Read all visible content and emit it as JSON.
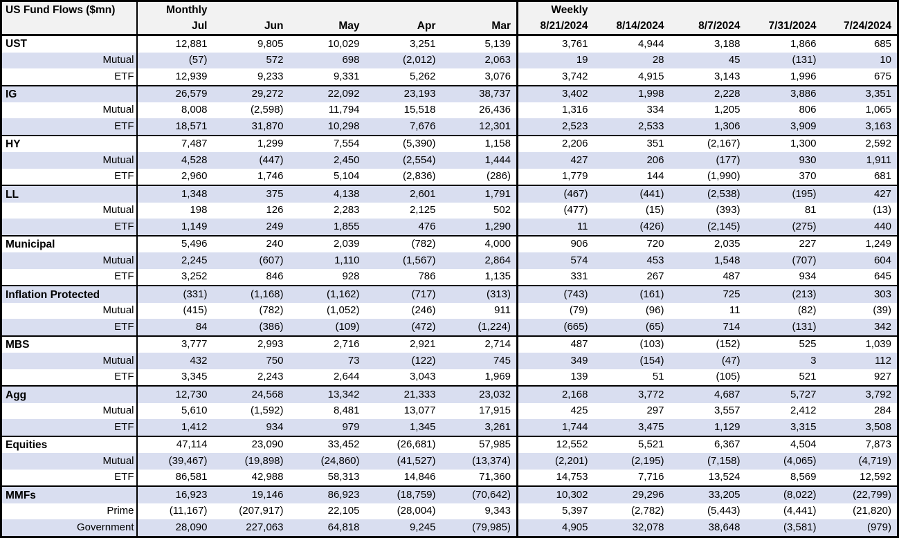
{
  "title": "US Fund Flows ($mn)",
  "colors": {
    "band_row": "#d9def0",
    "header_bg": "#f2f2f2",
    "border": "#000000",
    "text": "#000000"
  },
  "chart_data": {
    "type": "table",
    "title": "US Fund Flows ($mn)",
    "layout": {
      "grid": "banded-rows",
      "groups_order": [
        "Monthly",
        "Weekly"
      ],
      "section_rows": [
        "Total",
        "Mutual",
        "ETF"
      ]
    },
    "column_groups": [
      {
        "label": "Monthly",
        "columns": [
          "Jul",
          "Jun",
          "May",
          "Apr",
          "Mar"
        ]
      },
      {
        "label": "Weekly",
        "columns": [
          "8/21/2024",
          "8/14/2024",
          "8/7/2024",
          "7/31/2024",
          "7/24/2024"
        ]
      }
    ],
    "sections": [
      {
        "name": "UST",
        "rows": [
          {
            "label": "UST",
            "monthly": [
              "12,881",
              "9,805",
              "10,029",
              "3,251",
              "5,139"
            ],
            "weekly": [
              "3,761",
              "4,944",
              "3,188",
              "1,866",
              "685"
            ]
          },
          {
            "label": "Mutual",
            "monthly": [
              "(57)",
              "572",
              "698",
              "(2,012)",
              "2,063"
            ],
            "weekly": [
              "19",
              "28",
              "45",
              "(131)",
              "10"
            ]
          },
          {
            "label": "ETF",
            "monthly": [
              "12,939",
              "9,233",
              "9,331",
              "5,262",
              "3,076"
            ],
            "weekly": [
              "3,742",
              "4,915",
              "3,143",
              "1,996",
              "675"
            ]
          }
        ]
      },
      {
        "name": "IG",
        "rows": [
          {
            "label": "IG",
            "monthly": [
              "26,579",
              "29,272",
              "22,092",
              "23,193",
              "38,737"
            ],
            "weekly": [
              "3,402",
              "1,998",
              "2,228",
              "3,886",
              "3,351"
            ]
          },
          {
            "label": "Mutual",
            "monthly": [
              "8,008",
              "(2,598)",
              "11,794",
              "15,518",
              "26,436"
            ],
            "weekly": [
              "1,316",
              "334",
              "1,205",
              "806",
              "1,065"
            ]
          },
          {
            "label": "ETF",
            "monthly": [
              "18,571",
              "31,870",
              "10,298",
              "7,676",
              "12,301"
            ],
            "weekly": [
              "2,523",
              "2,533",
              "1,306",
              "3,909",
              "3,163"
            ]
          }
        ]
      },
      {
        "name": "HY",
        "rows": [
          {
            "label": "HY",
            "monthly": [
              "7,487",
              "1,299",
              "7,554",
              "(5,390)",
              "1,158"
            ],
            "weekly": [
              "2,206",
              "351",
              "(2,167)",
              "1,300",
              "2,592"
            ]
          },
          {
            "label": "Mutual",
            "monthly": [
              "4,528",
              "(447)",
              "2,450",
              "(2,554)",
              "1,444"
            ],
            "weekly": [
              "427",
              "206",
              "(177)",
              "930",
              "1,911"
            ]
          },
          {
            "label": "ETF",
            "monthly": [
              "2,960",
              "1,746",
              "5,104",
              "(2,836)",
              "(286)"
            ],
            "weekly": [
              "1,779",
              "144",
              "(1,990)",
              "370",
              "681"
            ]
          }
        ]
      },
      {
        "name": "LL",
        "rows": [
          {
            "label": "LL",
            "monthly": [
              "1,348",
              "375",
              "4,138",
              "2,601",
              "1,791"
            ],
            "weekly": [
              "(467)",
              "(441)",
              "(2,538)",
              "(195)",
              "427"
            ]
          },
          {
            "label": "Mutual",
            "monthly": [
              "198",
              "126",
              "2,283",
              "2,125",
              "502"
            ],
            "weekly": [
              "(477)",
              "(15)",
              "(393)",
              "81",
              "(13)"
            ]
          },
          {
            "label": "ETF",
            "monthly": [
              "1,149",
              "249",
              "1,855",
              "476",
              "1,290"
            ],
            "weekly": [
              "11",
              "(426)",
              "(2,145)",
              "(275)",
              "440"
            ]
          }
        ]
      },
      {
        "name": "Municipal",
        "rows": [
          {
            "label": "Municipal",
            "monthly": [
              "5,496",
              "240",
              "2,039",
              "(782)",
              "4,000"
            ],
            "weekly": [
              "906",
              "720",
              "2,035",
              "227",
              "1,249"
            ]
          },
          {
            "label": "Mutual",
            "monthly": [
              "2,245",
              "(607)",
              "1,110",
              "(1,567)",
              "2,864"
            ],
            "weekly": [
              "574",
              "453",
              "1,548",
              "(707)",
              "604"
            ]
          },
          {
            "label": "ETF",
            "monthly": [
              "3,252",
              "846",
              "928",
              "786",
              "1,135"
            ],
            "weekly": [
              "331",
              "267",
              "487",
              "934",
              "645"
            ]
          }
        ]
      },
      {
        "name": "Inflation Protected",
        "rows": [
          {
            "label": "Inflation Protected",
            "monthly": [
              "(331)",
              "(1,168)",
              "(1,162)",
              "(717)",
              "(313)"
            ],
            "weekly": [
              "(743)",
              "(161)",
              "725",
              "(213)",
              "303"
            ]
          },
          {
            "label": "Mutual",
            "monthly": [
              "(415)",
              "(782)",
              "(1,052)",
              "(246)",
              "911"
            ],
            "weekly": [
              "(79)",
              "(96)",
              "11",
              "(82)",
              "(39)"
            ]
          },
          {
            "label": "ETF",
            "monthly": [
              "84",
              "(386)",
              "(109)",
              "(472)",
              "(1,224)"
            ],
            "weekly": [
              "(665)",
              "(65)",
              "714",
              "(131)",
              "342"
            ]
          }
        ]
      },
      {
        "name": "MBS",
        "rows": [
          {
            "label": "MBS",
            "monthly": [
              "3,777",
              "2,993",
              "2,716",
              "2,921",
              "2,714"
            ],
            "weekly": [
              "487",
              "(103)",
              "(152)",
              "525",
              "1,039"
            ]
          },
          {
            "label": "Mutual",
            "monthly": [
              "432",
              "750",
              "73",
              "(122)",
              "745"
            ],
            "weekly": [
              "349",
              "(154)",
              "(47)",
              "3",
              "112"
            ]
          },
          {
            "label": "ETF",
            "monthly": [
              "3,345",
              "2,243",
              "2,644",
              "3,043",
              "1,969"
            ],
            "weekly": [
              "139",
              "51",
              "(105)",
              "521",
              "927"
            ]
          }
        ]
      },
      {
        "name": "Agg",
        "rows": [
          {
            "label": "Agg",
            "monthly": [
              "12,730",
              "24,568",
              "13,342",
              "21,333",
              "23,032"
            ],
            "weekly": [
              "2,168",
              "3,772",
              "4,687",
              "5,727",
              "3,792"
            ]
          },
          {
            "label": "Mutual",
            "monthly": [
              "5,610",
              "(1,592)",
              "8,481",
              "13,077",
              "17,915"
            ],
            "weekly": [
              "425",
              "297",
              "3,557",
              "2,412",
              "284"
            ]
          },
          {
            "label": "ETF",
            "monthly": [
              "1,412",
              "934",
              "979",
              "1,345",
              "3,261"
            ],
            "weekly": [
              "1,744",
              "3,475",
              "1,129",
              "3,315",
              "3,508"
            ]
          }
        ]
      },
      {
        "name": "Equities",
        "rows": [
          {
            "label": "Equities",
            "monthly": [
              "47,114",
              "23,090",
              "33,452",
              "(26,681)",
              "57,985"
            ],
            "weekly": [
              "12,552",
              "5,521",
              "6,367",
              "4,504",
              "7,873"
            ]
          },
          {
            "label": "Mutual",
            "monthly": [
              "(39,467)",
              "(19,898)",
              "(24,860)",
              "(41,527)",
              "(13,374)"
            ],
            "weekly": [
              "(2,201)",
              "(2,195)",
              "(7,158)",
              "(4,065)",
              "(4,719)"
            ]
          },
          {
            "label": "ETF",
            "monthly": [
              "86,581",
              "42,988",
              "58,313",
              "14,846",
              "71,360"
            ],
            "weekly": [
              "14,753",
              "7,716",
              "13,524",
              "8,569",
              "12,592"
            ]
          }
        ]
      },
      {
        "name": "MMFs",
        "rows": [
          {
            "label": "MMFs",
            "monthly": [
              "16,923",
              "19,146",
              "86,923",
              "(18,759)",
              "(70,642)"
            ],
            "weekly": [
              "10,302",
              "29,296",
              "33,205",
              "(8,022)",
              "(22,799)"
            ]
          },
          {
            "label": "Prime",
            "monthly": [
              "(11,167)",
              "(207,917)",
              "22,105",
              "(28,004)",
              "9,343"
            ],
            "weekly": [
              "5,397",
              "(2,782)",
              "(5,443)",
              "(4,441)",
              "(21,820)"
            ]
          },
          {
            "label": "Government",
            "monthly": [
              "28,090",
              "227,063",
              "64,818",
              "9,245",
              "(79,985)"
            ],
            "weekly": [
              "4,905",
              "32,078",
              "38,648",
              "(3,581)",
              "(979)"
            ]
          }
        ]
      }
    ]
  }
}
